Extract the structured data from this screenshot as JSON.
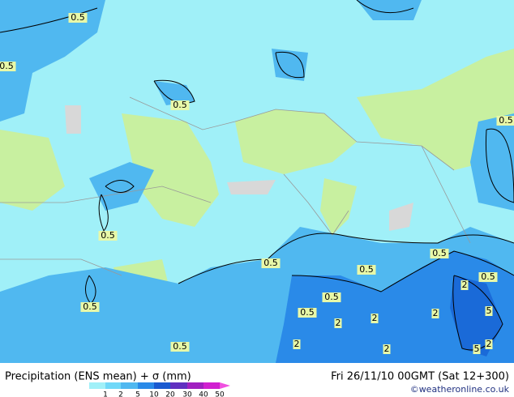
{
  "map_labels": [
    "0.5",
    "0.5",
    "0.5",
    "0.5",
    "0.5",
    "0.5",
    "0.5",
    "0.5",
    "0.5",
    "0.5",
    "0.5",
    "0.5",
    "0.5",
    "2",
    "2",
    "2",
    "2",
    "2",
    "2",
    "2",
    "5",
    "5"
  ],
  "footer": {
    "title": "Precipitation (ENS mean) + σ (mm)",
    "date": "Fri 26/11/10 00GMT (Sat 12+300)",
    "credit": "©weatheronline.co.uk"
  },
  "legend": {
    "ticks": [
      1,
      2,
      5,
      10,
      20,
      30,
      40,
      50
    ]
  }
}
